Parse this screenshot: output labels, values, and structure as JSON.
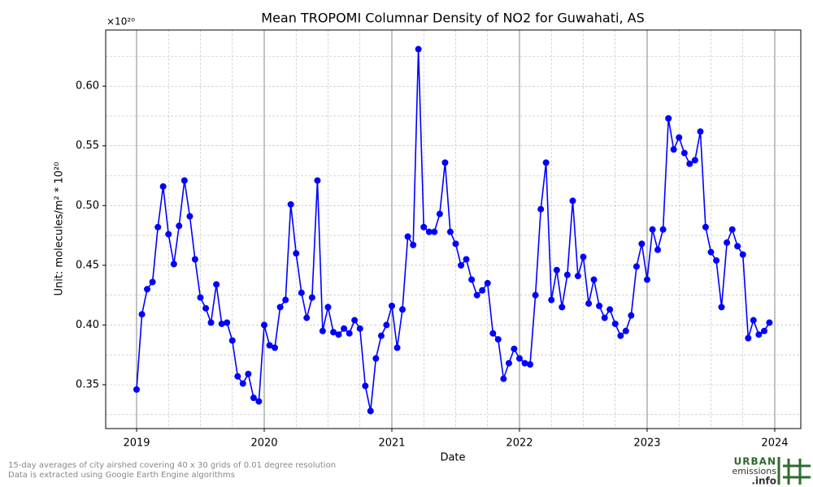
{
  "chart_data": {
    "type": "line",
    "title": "Mean TROPOMI Columnar Density of NO2 for Guwahati, AS",
    "offset_label": "×10²⁰",
    "xlabel": "Date",
    "ylabel": "Unit: molecules/m² * 10²⁰",
    "footnotes": [
      "15-day averages of city airshed covering 40 x 30 grids of 0.01 degree resolution",
      "Data is extracted using Google Earth Engine algorithms"
    ],
    "logo": [
      "URBAN",
      "emissions",
      ".info"
    ],
    "color": "#0000ff",
    "grid": true,
    "xlim": [
      2018.758,
      2024.204
    ],
    "ylim": [
      0.3133,
      0.647
    ],
    "xticks": [
      2019,
      2020,
      2021,
      2022,
      2023,
      2024
    ],
    "yticks": [
      0.35,
      {
        "value": 0.4,
        "label": "0.40"
      },
      0.45,
      {
        "value": 0.5,
        "label": "0.50"
      },
      0.55,
      {
        "value": 0.6,
        "label": "0.60"
      }
    ],
    "xminorticks": [
      2019.25,
      2019.5,
      2019.75,
      2020.25,
      2020.5,
      2020.75,
      2021.25,
      2021.5,
      2021.75,
      2022.25,
      2022.5,
      2022.75,
      2023.25,
      2023.5,
      2023.75
    ],
    "yminorticks": [
      0.325,
      0.375,
      0.425,
      0.475,
      0.525,
      0.575,
      0.625
    ],
    "x": [
      2019.0,
      2019.042,
      2019.083,
      2019.125,
      2019.167,
      2019.208,
      2019.25,
      2019.292,
      2019.333,
      2019.375,
      2019.417,
      2019.458,
      2019.5,
      2019.542,
      2019.583,
      2019.625,
      2019.667,
      2019.708,
      2019.75,
      2019.792,
      2019.833,
      2019.875,
      2019.917,
      2019.958,
      2020.0,
      2020.042,
      2020.083,
      2020.125,
      2020.167,
      2020.208,
      2020.25,
      2020.292,
      2020.333,
      2020.375,
      2020.417,
      2020.458,
      2020.5,
      2020.542,
      2020.583,
      2020.625,
      2020.667,
      2020.708,
      2020.75,
      2020.792,
      2020.833,
      2020.875,
      2020.917,
      2020.958,
      2021.0,
      2021.042,
      2021.083,
      2021.125,
      2021.167,
      2021.208,
      2021.25,
      2021.292,
      2021.333,
      2021.375,
      2021.417,
      2021.458,
      2021.5,
      2021.542,
      2021.583,
      2021.625,
      2021.667,
      2021.708,
      2021.75,
      2021.792,
      2021.833,
      2021.875,
      2021.917,
      2021.958,
      2022.0,
      2022.042,
      2022.083,
      2022.125,
      2022.167,
      2022.208,
      2022.25,
      2022.292,
      2022.333,
      2022.375,
      2022.417,
      2022.458,
      2022.5,
      2022.542,
      2022.583,
      2022.625,
      2022.667,
      2022.708,
      2022.75,
      2022.792,
      2022.833,
      2022.875,
      2022.917,
      2022.958,
      2023.0,
      2023.042,
      2023.083,
      2023.125,
      2023.167,
      2023.208,
      2023.25,
      2023.292,
      2023.333,
      2023.375,
      2023.417,
      2023.458,
      2023.5,
      2023.542,
      2023.583,
      2023.625,
      2023.667,
      2023.708,
      2023.75,
      2023.792,
      2023.833,
      2023.875,
      2023.917,
      2023.958
    ],
    "values": [
      0.346,
      0.409,
      0.43,
      0.436,
      0.482,
      0.516,
      0.476,
      0.451,
      0.483,
      0.521,
      0.491,
      0.455,
      0.423,
      0.414,
      0.402,
      0.434,
      0.401,
      0.402,
      0.387,
      0.357,
      0.351,
      0.359,
      0.339,
      0.336,
      0.4,
      0.383,
      0.381,
      0.415,
      0.421,
      0.501,
      0.46,
      0.427,
      0.406,
      0.423,
      0.521,
      0.395,
      0.415,
      0.394,
      0.392,
      0.397,
      0.393,
      0.404,
      0.397,
      0.349,
      0.328,
      0.372,
      0.391,
      0.4,
      0.416,
      0.381,
      0.413,
      0.474,
      0.467,
      0.631,
      0.482,
      0.478,
      0.478,
      0.493,
      0.536,
      0.478,
      0.468,
      0.45,
      0.455,
      0.438,
      0.425,
      0.429,
      0.435,
      0.393,
      0.388,
      0.355,
      0.368,
      0.38,
      0.372,
      0.368,
      0.367,
      0.425,
      0.497,
      0.536,
      0.421,
      0.446,
      0.415,
      0.442,
      0.504,
      0.441,
      0.457,
      0.418,
      0.438,
      0.416,
      0.406,
      0.413,
      0.401,
      0.391,
      0.395,
      0.408,
      0.449,
      0.468,
      0.438,
      0.48,
      0.463,
      0.48,
      0.573,
      0.547,
      0.557,
      0.544,
      0.535,
      0.538,
      0.562,
      0.482,
      0.461,
      0.454,
      0.415,
      0.469,
      0.48,
      0.466,
      0.459,
      0.389,
      0.404,
      0.392,
      0.395,
      0.402
    ]
  }
}
